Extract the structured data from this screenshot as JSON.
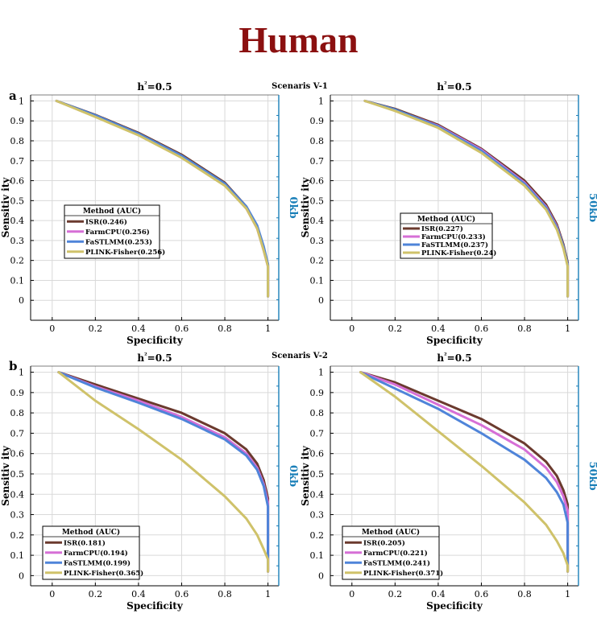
{
  "figure": {
    "title": "Human",
    "title_color": "#8b1010",
    "scenario_labels": [
      "Scenaris V-1",
      "Scenaris V-2"
    ],
    "panel_letters": [
      "a",
      "b"
    ]
  },
  "colors": {
    "axis_right": "#1a7fb8",
    "grid": "#d9d9d9",
    "series": {
      "ISR": "#6b3a2e",
      "FarmCPU": "#d66fd6",
      "FaSTLMM": "#4f84d9",
      "PLINK-Fisher": "#cfc26a"
    }
  },
  "chart_data": [
    {
      "type": "line",
      "title": "h²=0.5",
      "xlabel": "Specificity",
      "ylabel": "Sensitiv ity",
      "right_label": "0kb",
      "xlim": [
        -0.1,
        1.05
      ],
      "ylim": [
        -0.1,
        1.03
      ],
      "xticks": [
        "0",
        "0.2",
        "0.4",
        "0.6",
        "0.8",
        "1"
      ],
      "yticks": [
        "0",
        "0.1",
        "0.2",
        "0.3",
        "0.4",
        "0.5",
        "0.6",
        "0.7",
        "0.8",
        "0.9",
        "1"
      ],
      "legend_title": "Method (AUC)",
      "legend_position": "center-left",
      "series": [
        {
          "name": "ISR(0.246)",
          "key": "ISR",
          "x": [
            0.02,
            0.2,
            0.4,
            0.6,
            0.8,
            0.9,
            0.95,
            0.98,
            1.0,
            1.0
          ],
          "y": [
            1.0,
            0.93,
            0.84,
            0.73,
            0.59,
            0.47,
            0.37,
            0.26,
            0.18,
            0.02
          ]
        },
        {
          "name": "FarmCPU(0.256)",
          "key": "FarmCPU",
          "x": [
            0.02,
            0.2,
            0.4,
            0.6,
            0.8,
            0.9,
            0.95,
            0.98,
            1.0,
            1.0
          ],
          "y": [
            1.0,
            0.925,
            0.832,
            0.72,
            0.58,
            0.46,
            0.36,
            0.25,
            0.17,
            0.02
          ]
        },
        {
          "name": "FaSTLMM(0.253)",
          "key": "FaSTLMM",
          "x": [
            0.02,
            0.2,
            0.4,
            0.6,
            0.8,
            0.9,
            0.95,
            0.98,
            1.0,
            1.0
          ],
          "y": [
            1.0,
            0.928,
            0.836,
            0.725,
            0.585,
            0.47,
            0.375,
            0.27,
            0.18,
            0.02
          ]
        },
        {
          "name": "PLINK-Fisher(0.256)",
          "key": "PLINK-Fisher",
          "x": [
            0.02,
            0.2,
            0.4,
            0.6,
            0.8,
            0.9,
            0.95,
            0.98,
            1.0,
            1.0
          ],
          "y": [
            1.0,
            0.92,
            0.828,
            0.715,
            0.575,
            0.46,
            0.36,
            0.25,
            0.17,
            0.02
          ]
        }
      ]
    },
    {
      "type": "line",
      "title": "h²=0.5",
      "xlabel": "Specificity",
      "ylabel": "Sensitiv ity",
      "right_label": "50kb",
      "xlim": [
        -0.1,
        1.05
      ],
      "ylim": [
        -0.1,
        1.03
      ],
      "xticks": [
        "0",
        "0.2",
        "0.4",
        "0.6",
        "0.8",
        "1"
      ],
      "yticks": [
        "0",
        "0.1",
        "0.2",
        "0.3",
        "0.4",
        "0.5",
        "0.6",
        "0.7",
        "0.8",
        "0.9",
        "1"
      ],
      "legend_title": "Method (AUC)",
      "legend_position": "center-right",
      "series": [
        {
          "name": "ISR(0.227)",
          "key": "ISR",
          "x": [
            0.06,
            0.2,
            0.4,
            0.6,
            0.8,
            0.9,
            0.95,
            0.98,
            1.0,
            1.0
          ],
          "y": [
            1.0,
            0.96,
            0.88,
            0.76,
            0.6,
            0.48,
            0.38,
            0.28,
            0.19,
            0.02
          ]
        },
        {
          "name": "FarmCPU(0.233)",
          "key": "FarmCPU",
          "x": [
            0.06,
            0.2,
            0.4,
            0.6,
            0.8,
            0.9,
            0.95,
            0.98,
            1.0,
            1.0
          ],
          "y": [
            1.0,
            0.955,
            0.875,
            0.755,
            0.59,
            0.47,
            0.37,
            0.27,
            0.18,
            0.02
          ]
        },
        {
          "name": "FaSTLMM(0.237)",
          "key": "FaSTLMM",
          "x": [
            0.06,
            0.2,
            0.4,
            0.6,
            0.8,
            0.9,
            0.95,
            0.98,
            1.0,
            1.0
          ],
          "y": [
            1.0,
            0.957,
            0.872,
            0.75,
            0.585,
            0.465,
            0.365,
            0.27,
            0.18,
            0.02
          ]
        },
        {
          "name": "PLINK-Fisher(0.24)",
          "key": "PLINK-Fisher",
          "x": [
            0.06,
            0.2,
            0.4,
            0.6,
            0.8,
            0.9,
            0.95,
            0.98,
            1.0,
            1.0
          ],
          "y": [
            1.0,
            0.95,
            0.865,
            0.74,
            0.575,
            0.455,
            0.355,
            0.26,
            0.17,
            0.02
          ]
        }
      ]
    },
    {
      "type": "line",
      "title": "h²=0.5",
      "xlabel": "Specificity",
      "ylabel": "Sensitiv ity",
      "right_label": "0kb",
      "xlim": [
        -0.1,
        1.05
      ],
      "ylim": [
        -0.05,
        1.03
      ],
      "xticks": [
        "0",
        "0.2",
        "0.4",
        "0.6",
        "0.8",
        "1"
      ],
      "yticks": [
        "0",
        "0.1",
        "0.2",
        "0.3",
        "0.4",
        "0.5",
        "0.6",
        "0.7",
        "0.8",
        "0.9",
        "1"
      ],
      "legend_title": "Method (AUC)",
      "legend_position": "bottom-left",
      "series": [
        {
          "name": "ISR(0.181)",
          "key": "ISR",
          "x": [
            0.03,
            0.2,
            0.4,
            0.6,
            0.8,
            0.9,
            0.95,
            0.98,
            1.0,
            1.0
          ],
          "y": [
            1.0,
            0.94,
            0.87,
            0.8,
            0.7,
            0.62,
            0.55,
            0.47,
            0.38,
            0.02
          ]
        },
        {
          "name": "FarmCPU(0.194)",
          "key": "FarmCPU",
          "x": [
            0.03,
            0.2,
            0.4,
            0.6,
            0.8,
            0.9,
            0.95,
            0.98,
            1.0,
            1.0
          ],
          "y": [
            1.0,
            0.93,
            0.86,
            0.78,
            0.68,
            0.6,
            0.53,
            0.45,
            0.36,
            0.02
          ]
        },
        {
          "name": "FaSTLMM(0.199)",
          "key": "FaSTLMM",
          "x": [
            0.03,
            0.2,
            0.4,
            0.6,
            0.8,
            0.9,
            0.95,
            0.98,
            1.0,
            1.0
          ],
          "y": [
            1.0,
            0.925,
            0.85,
            0.77,
            0.67,
            0.59,
            0.52,
            0.44,
            0.34,
            0.02
          ]
        },
        {
          "name": "PLINK-Fisher(0.365)",
          "key": "PLINK-Fisher",
          "x": [
            0.03,
            0.2,
            0.4,
            0.6,
            0.8,
            0.9,
            0.95,
            0.98,
            1.0,
            1.0
          ],
          "y": [
            1.0,
            0.86,
            0.72,
            0.57,
            0.39,
            0.28,
            0.2,
            0.13,
            0.08,
            0.02
          ]
        }
      ]
    },
    {
      "type": "line",
      "title": "h²=0.5",
      "xlabel": "Specificity",
      "ylabel": "Sensitiv ity",
      "right_label": "50kb",
      "xlim": [
        -0.1,
        1.05
      ],
      "ylim": [
        -0.05,
        1.03
      ],
      "xticks": [
        "0",
        "0.2",
        "0.4",
        "0.6",
        "0.8",
        "1"
      ],
      "yticks": [
        "0",
        "0.1",
        "0.2",
        "0.3",
        "0.4",
        "0.5",
        "0.6",
        "0.7",
        "0.8",
        "0.9",
        "1"
      ],
      "legend_title": "Method (AUC)",
      "legend_position": "bottom-left",
      "series": [
        {
          "name": "ISR(0.205)",
          "key": "ISR",
          "x": [
            0.04,
            0.2,
            0.4,
            0.6,
            0.8,
            0.9,
            0.95,
            0.98,
            1.0,
            1.0
          ],
          "y": [
            1.0,
            0.95,
            0.86,
            0.77,
            0.65,
            0.56,
            0.49,
            0.42,
            0.35,
            0.02
          ]
        },
        {
          "name": "FarmCPU(0.221)",
          "key": "FarmCPU",
          "x": [
            0.04,
            0.2,
            0.4,
            0.6,
            0.8,
            0.9,
            0.95,
            0.98,
            1.0,
            1.0
          ],
          "y": [
            1.0,
            0.94,
            0.84,
            0.74,
            0.62,
            0.53,
            0.46,
            0.39,
            0.32,
            0.02
          ]
        },
        {
          "name": "FaSTLMM(0.241)",
          "key": "FaSTLMM",
          "x": [
            0.04,
            0.2,
            0.4,
            0.6,
            0.8,
            0.9,
            0.95,
            0.98,
            1.0,
            1.0
          ],
          "y": [
            1.0,
            0.92,
            0.82,
            0.7,
            0.57,
            0.48,
            0.41,
            0.35,
            0.26,
            0.02
          ]
        },
        {
          "name": "PLINK-Fisher(0.371)",
          "key": "PLINK-Fisher",
          "x": [
            0.04,
            0.2,
            0.4,
            0.6,
            0.8,
            0.9,
            0.95,
            0.98,
            1.0,
            1.0
          ],
          "y": [
            1.0,
            0.88,
            0.71,
            0.54,
            0.36,
            0.25,
            0.17,
            0.11,
            0.05,
            0.02
          ]
        }
      ]
    }
  ]
}
